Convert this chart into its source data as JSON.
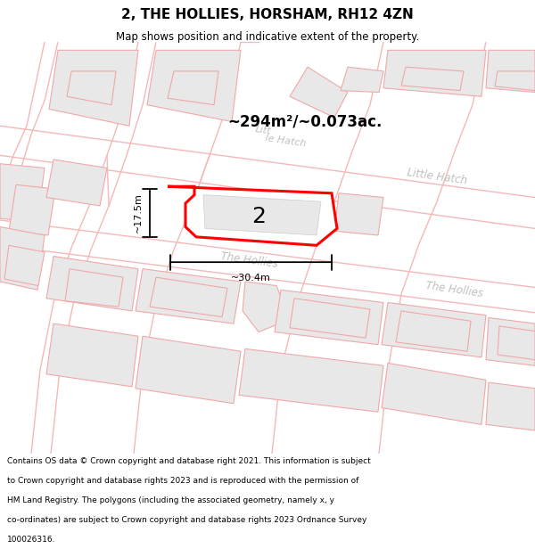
{
  "title": "2, THE HOLLIES, HORSHAM, RH12 4ZN",
  "subtitle": "Map shows position and indicative extent of the property.",
  "area_text": "~294m²/~0.073ac.",
  "dim_width": "~30.4m",
  "dim_height": "~17.5m",
  "label_number": "2",
  "footer_lines": [
    "Contains OS data © Crown copyright and database right 2021. This information is subject",
    "to Crown copyright and database rights 2023 and is reproduced with the permission of",
    "HM Land Registry. The polygons (including the associated geometry, namely x, y",
    "co-ordinates) are subject to Crown copyright and database rights 2023 Ordnance Survey",
    "100026316."
  ],
  "bg_color": "#ffffff",
  "road_color": "#f5b8b8",
  "building_fill": "#e8e8e8",
  "building_edge": "#f0a8a8",
  "highlight_color": "#ff0000",
  "street_label_color": "#c0c0c0",
  "dim_color": "#000000"
}
